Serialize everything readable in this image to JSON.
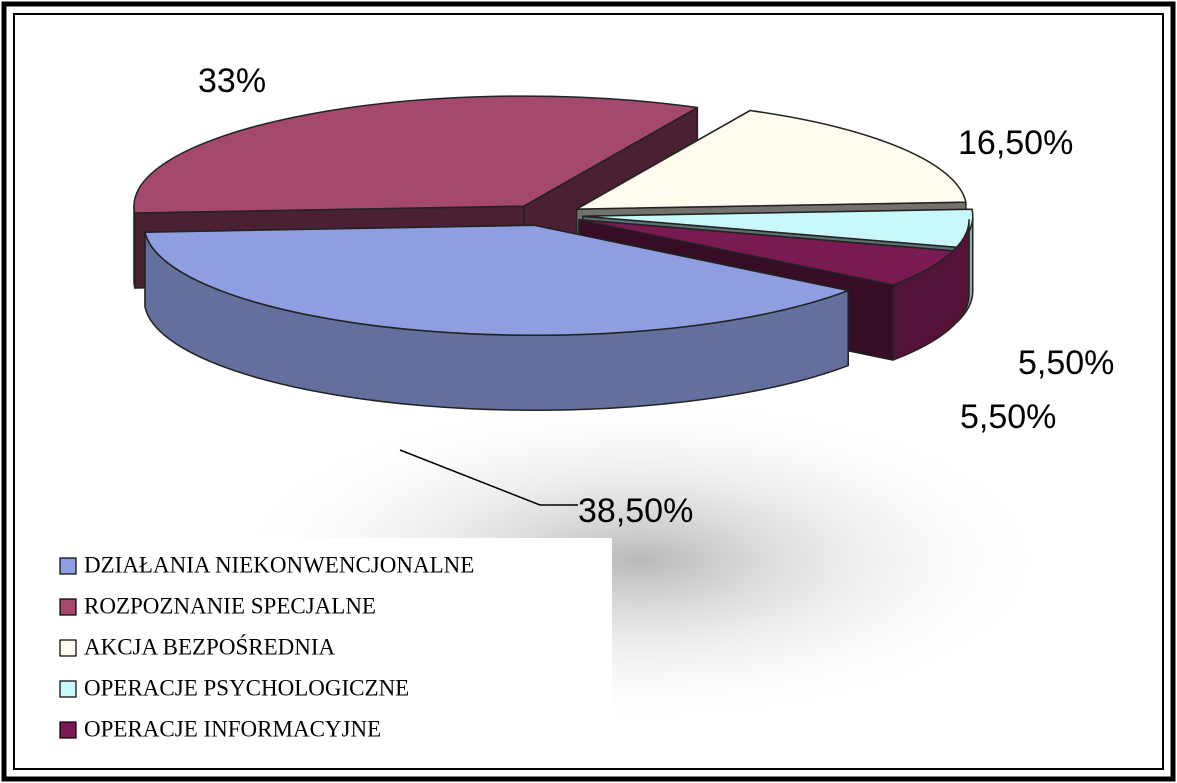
{
  "chart_data": {
    "type": "pie3d",
    "categories": [
      "DZIAŁANIA NIEKONWENCJONALNE",
      "ROZPOZNANIE SPECJALNE",
      "AKCJA BEZPOŚREDNIA",
      "OPERACJE PSYCHOLOGICZNE",
      "OPERACJE INFORMACYJNE"
    ],
    "values": [
      38.5,
      33,
      16.5,
      5.5,
      5.5
    ],
    "value_labels": [
      "38,50%",
      "33%",
      "16,50%",
      "5,50%",
      "5,50%"
    ],
    "colors": [
      "#8e9ee0",
      "#a4486e",
      "#fffbee",
      "#c8f8fc",
      "#7a1a52"
    ],
    "legend": "bottom-left"
  }
}
